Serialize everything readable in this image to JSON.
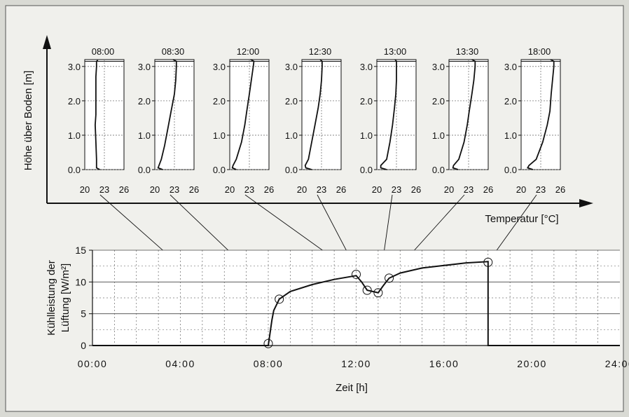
{
  "figure": {
    "top_ylabel": "Höhe über Boden [m]",
    "top_xlabel": "Temperatur [°C]",
    "bottom_ylabel_line1": "Kühlleistung der",
    "bottom_ylabel_line2": "Lüftung [W/m²]",
    "bottom_xlabel": "Zeit [h]"
  },
  "chart_data": [
    {
      "type": "line",
      "panels": [
        {
          "title": "08:00",
          "temp": [
            22.3,
            21.8,
            21.8,
            21.7,
            21.6,
            21.7,
            21.7,
            21.7,
            21.7,
            21.8,
            21.8,
            22.0
          ],
          "height": [
            0.0,
            0.05,
            0.3,
            0.8,
            1.3,
            1.6,
            1.9,
            2.3,
            2.7,
            3.0,
            3.15,
            3.18
          ]
        },
        {
          "title": "08:30",
          "temp": [
            21.2,
            20.5,
            20.6,
            21.0,
            21.5,
            22.0,
            22.5,
            23.0,
            23.2,
            23.3,
            23.3,
            22.8
          ],
          "height": [
            0.0,
            0.05,
            0.1,
            0.3,
            0.7,
            1.2,
            1.7,
            2.2,
            2.6,
            3.0,
            3.15,
            3.2
          ]
        },
        {
          "title": "12:00",
          "temp": [
            21.0,
            20.4,
            20.5,
            21.0,
            21.8,
            22.3,
            22.6,
            23.0,
            23.3,
            23.6,
            23.7,
            23.2
          ],
          "height": [
            0.0,
            0.05,
            0.12,
            0.3,
            0.8,
            1.3,
            1.7,
            2.2,
            2.6,
            3.0,
            3.15,
            3.2
          ]
        },
        {
          "title": "12:30",
          "temp": [
            21.5,
            20.6,
            20.5,
            21.0,
            21.5,
            22.0,
            22.5,
            22.8,
            23.0,
            23.1,
            23.1,
            22.8
          ],
          "height": [
            0.0,
            0.05,
            0.12,
            0.3,
            0.8,
            1.3,
            1.8,
            2.2,
            2.6,
            3.0,
            3.15,
            3.2
          ]
        },
        {
          "title": "13:00",
          "temp": [
            21.5,
            20.6,
            20.6,
            21.5,
            22.0,
            22.4,
            22.7,
            22.9,
            23.0,
            23.0,
            23.0,
            22.8
          ],
          "height": [
            0.0,
            0.05,
            0.12,
            0.3,
            0.8,
            1.3,
            1.8,
            2.2,
            2.6,
            3.0,
            3.15,
            3.2
          ]
        },
        {
          "title": "13:30",
          "temp": [
            21.4,
            20.6,
            20.7,
            21.5,
            22.3,
            22.8,
            23.1,
            23.5,
            23.8,
            24.0,
            24.0,
            23.5
          ],
          "height": [
            0.0,
            0.05,
            0.12,
            0.3,
            0.8,
            1.3,
            1.7,
            2.2,
            2.6,
            3.0,
            3.15,
            3.2
          ]
        },
        {
          "title": "18:00",
          "temp": [
            21.8,
            21.0,
            21.2,
            22.3,
            23.3,
            24.0,
            24.4,
            24.6,
            24.8,
            25.0,
            25.0,
            24.5
          ],
          "height": [
            0.0,
            0.05,
            0.12,
            0.3,
            0.8,
            1.3,
            1.7,
            2.2,
            2.6,
            3.0,
            3.15,
            3.2
          ]
        }
      ],
      "ylabel": "Höhe über Boden [m]",
      "xlabel": "Temperatur [°C]",
      "yticks": [
        "0.0",
        "1.0",
        "2.0",
        "3.0"
      ],
      "xticks": [
        "20",
        "23",
        "26"
      ],
      "xlim": [
        20,
        26
      ],
      "ylim": [
        0,
        3.2
      ]
    },
    {
      "type": "line",
      "x": [
        "00:00",
        "08:00",
        "08:05",
        "08:10",
        "08:15",
        "08:30",
        "09:00",
        "10:00",
        "11:00",
        "12:00",
        "12:15",
        "12:30",
        "12:45",
        "13:00",
        "13:15",
        "13:30",
        "14:00",
        "15:00",
        "16:00",
        "17:00",
        "18:00",
        "18:00",
        "24:00"
      ],
      "y": [
        0,
        0,
        2,
        4,
        5.5,
        7.3,
        8.5,
        9.6,
        10.4,
        11.0,
        10.0,
        8.7,
        8.5,
        8.3,
        9.5,
        10.6,
        11.4,
        12.2,
        12.6,
        13.0,
        13.2,
        0,
        0
      ],
      "markers": [
        {
          "x": "08:00",
          "y": 0.3
        },
        {
          "x": "08:30",
          "y": 7.3
        },
        {
          "x": "12:00",
          "y": 11.2
        },
        {
          "x": "12:30",
          "y": 8.7
        },
        {
          "x": "13:00",
          "y": 8.3
        },
        {
          "x": "13:30",
          "y": 10.6
        },
        {
          "x": "18:00",
          "y": 13.1
        }
      ],
      "xlabel": "Zeit [h]",
      "ylabel": "Kühlleistung der Lüftung [W/m²]",
      "xticks": [
        "00:00",
        "04:00",
        "08:00",
        "12:00",
        "16:00",
        "20:00",
        "24:00"
      ],
      "yticks": [
        "0",
        "5",
        "10",
        "15"
      ],
      "xlim": [
        0,
        24
      ],
      "ylim": [
        0,
        15
      ],
      "grid": true
    }
  ]
}
